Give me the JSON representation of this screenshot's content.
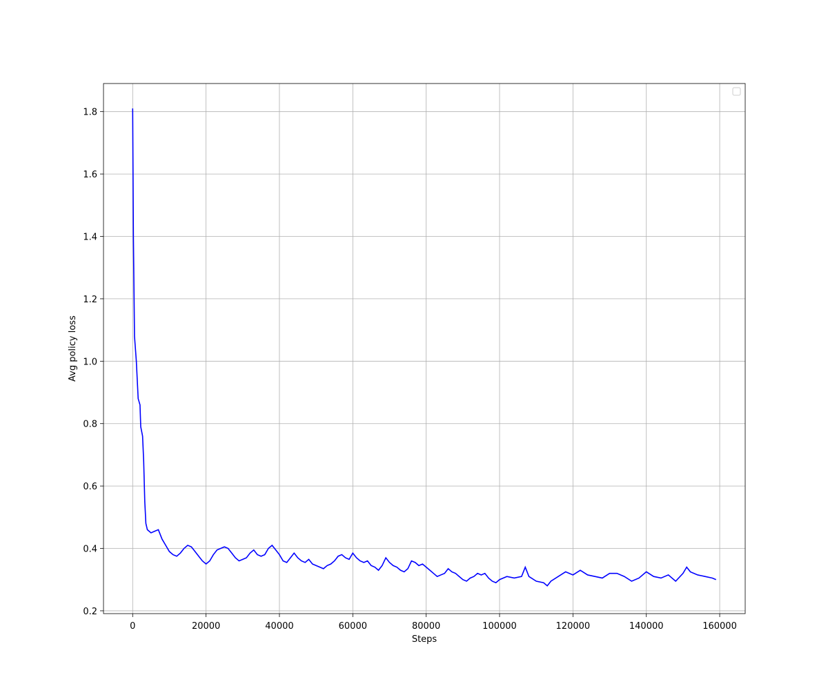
{
  "chart_data": {
    "type": "line",
    "xlabel": "Steps",
    "ylabel": "Avg policy loss",
    "x": [
      0,
      200,
      500,
      1000,
      1500,
      2000,
      2200,
      2700,
      3000,
      3300,
      3600,
      4000,
      5000,
      6000,
      7000,
      8000,
      9000,
      10000,
      11000,
      12000,
      13000,
      14000,
      15000,
      16000,
      17000,
      18000,
      19000,
      20000,
      21000,
      22000,
      23000,
      24000,
      25000,
      26000,
      27000,
      28000,
      29000,
      30000,
      31000,
      32000,
      33000,
      34000,
      35000,
      36000,
      37000,
      38000,
      39000,
      40000,
      41000,
      42000,
      43000,
      44000,
      45000,
      46000,
      47000,
      48000,
      49000,
      50000,
      51000,
      52000,
      53000,
      54000,
      55000,
      56000,
      57000,
      58000,
      59000,
      60000,
      61000,
      62000,
      63000,
      64000,
      65000,
      66000,
      67000,
      68000,
      69000,
      70000,
      71000,
      72000,
      73000,
      74000,
      75000,
      76000,
      77000,
      78000,
      79000,
      80000,
      81000,
      82000,
      83000,
      84000,
      85000,
      86000,
      87000,
      88000,
      89000,
      90000,
      91000,
      92000,
      93000,
      94000,
      95000,
      96000,
      97000,
      98000,
      99000,
      100000,
      102000,
      104000,
      106000,
      107000,
      108000,
      110000,
      112000,
      113000,
      114000,
      116000,
      118000,
      120000,
      122000,
      124000,
      126000,
      128000,
      130000,
      132000,
      134000,
      136000,
      138000,
      140000,
      142000,
      144000,
      146000,
      148000,
      150000,
      151000,
      152000,
      154000,
      156000,
      158000,
      159000
    ],
    "series": [
      {
        "color": "#0000ff",
        "values": [
          1.81,
          1.4,
          1.08,
          1.0,
          0.88,
          0.86,
          0.79,
          0.76,
          0.68,
          0.55,
          0.48,
          0.46,
          0.45,
          0.455,
          0.46,
          0.43,
          0.41,
          0.39,
          0.38,
          0.375,
          0.385,
          0.4,
          0.41,
          0.405,
          0.39,
          0.375,
          0.36,
          0.35,
          0.36,
          0.38,
          0.395,
          0.4,
          0.405,
          0.4,
          0.385,
          0.37,
          0.36,
          0.365,
          0.37,
          0.385,
          0.395,
          0.38,
          0.375,
          0.38,
          0.4,
          0.41,
          0.395,
          0.38,
          0.36,
          0.355,
          0.37,
          0.385,
          0.37,
          0.36,
          0.355,
          0.365,
          0.35,
          0.345,
          0.34,
          0.335,
          0.345,
          0.35,
          0.36,
          0.375,
          0.38,
          0.37,
          0.365,
          0.385,
          0.37,
          0.36,
          0.355,
          0.36,
          0.345,
          0.34,
          0.33,
          0.345,
          0.37,
          0.355,
          0.345,
          0.34,
          0.33,
          0.325,
          0.335,
          0.36,
          0.355,
          0.345,
          0.35,
          0.34,
          0.33,
          0.32,
          0.31,
          0.315,
          0.32,
          0.335,
          0.325,
          0.32,
          0.31,
          0.3,
          0.295,
          0.305,
          0.31,
          0.32,
          0.315,
          0.32,
          0.305,
          0.295,
          0.29,
          0.3,
          0.31,
          0.305,
          0.31,
          0.34,
          0.31,
          0.295,
          0.29,
          0.28,
          0.295,
          0.31,
          0.325,
          0.315,
          0.33,
          0.315,
          0.31,
          0.305,
          0.32,
          0.32,
          0.31,
          0.295,
          0.305,
          0.325,
          0.31,
          0.305,
          0.315,
          0.295,
          0.32,
          0.34,
          0.325,
          0.315,
          0.31,
          0.305,
          0.3
        ]
      }
    ],
    "xlim": [
      -7950,
      166950
    ],
    "ylim": [
      0.191,
      1.89
    ],
    "xticks": [
      0,
      20000,
      40000,
      60000,
      80000,
      100000,
      120000,
      140000,
      160000
    ],
    "yticks": [
      0.2,
      0.4,
      0.6,
      0.8,
      {
        "value": 1,
        "label": "1.0"
      },
      1.2,
      1.4,
      1.6,
      1.8
    ],
    "grid": true,
    "legend": "upper right"
  }
}
